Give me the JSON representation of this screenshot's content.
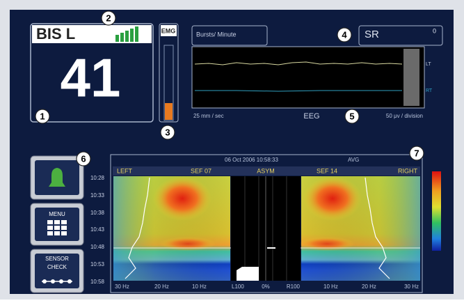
{
  "bis_panel": {
    "label": "BIS L",
    "value": "41"
  },
  "emg": {
    "label": "EMG"
  },
  "eeg_panel": {
    "bursts_label": "Bursts/ Minute",
    "sr_label": "SR",
    "sr_value": "0",
    "speed": "25 mm / sec",
    "title": "EEG",
    "scale": "50 μv / division",
    "left_channel": "LT",
    "right_channel": "RT"
  },
  "buttons": {
    "menu": "MENU",
    "sensor_check": "SENSOR CHECK"
  },
  "trend": {
    "header_date": "06 Oct 2006  10:58:33",
    "header_mode": "AVG",
    "columns": [
      "LEFT",
      "SEF 07",
      "ASYM",
      "SEF 14",
      "RIGHT"
    ],
    "times": [
      "10:28",
      "10:33",
      "10:38",
      "10:43",
      "10:48",
      "10:53",
      "10:58"
    ],
    "freq_labels": [
      "30 Hz",
      "20 Hz",
      "10 Hz",
      "L100",
      "0%",
      "R100",
      "10 Hz",
      "20 Hz",
      "30 Hz"
    ]
  },
  "callouts": [
    "1",
    "2",
    "3",
    "4",
    "5",
    "6",
    "7"
  ]
}
